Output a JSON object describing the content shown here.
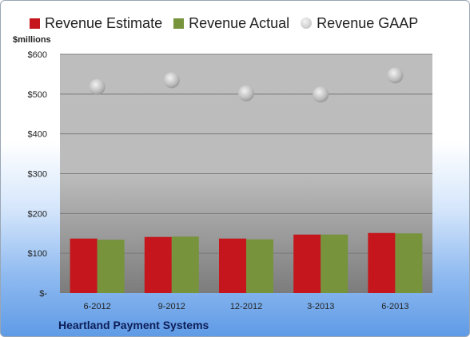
{
  "chart_data": {
    "type": "bar",
    "title": "",
    "ylabel": "$millions",
    "xlabel": "",
    "footer": "Heartland Payment Systems",
    "categories": [
      "6-2012",
      "9-2012",
      "12-2012",
      "3-2013",
      "6-2013"
    ],
    "series": [
      {
        "name": "Revenue Estimate",
        "kind": "bar",
        "color": "#c4161c",
        "values": [
          137,
          141,
          137,
          147,
          151
        ]
      },
      {
        "name": "Revenue Actual",
        "kind": "bar",
        "color": "#77933c",
        "values": [
          134,
          142,
          135,
          147,
          150
        ]
      },
      {
        "name": "Revenue GAAP",
        "kind": "marker",
        "color": "#b5b5b5",
        "values": [
          518,
          535,
          502,
          499,
          547
        ]
      }
    ],
    "ylim": [
      0,
      600
    ],
    "yticks": [
      0,
      100,
      200,
      300,
      400,
      500,
      600
    ],
    "ytick_labels": [
      "$-",
      "$100",
      "$200",
      "$300",
      "$400",
      "$500",
      "$600"
    ],
    "grid": true,
    "legend": "top"
  }
}
